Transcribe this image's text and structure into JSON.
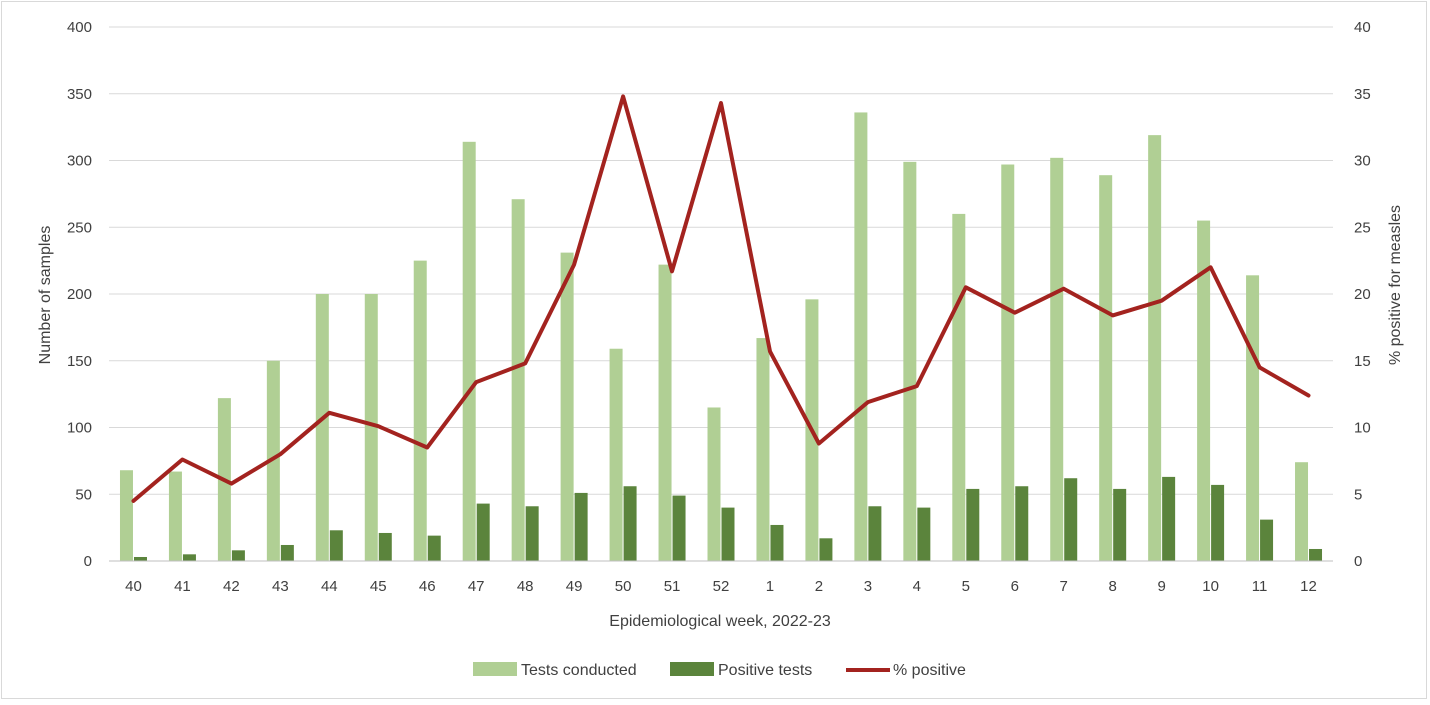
{
  "chart_data": {
    "type": "bar",
    "title": "",
    "xlabel": "Epidemiological week, 2022-23",
    "ylabel": "Number  of samples",
    "y2label": "% positive for measles",
    "ylim": [
      0,
      400
    ],
    "y2lim": [
      0,
      40
    ],
    "yticks": [
      "0",
      "50",
      "100",
      "150",
      "200",
      "250",
      "300",
      "350",
      "400"
    ],
    "y2ticks": [
      "0",
      "5",
      "10",
      "15",
      "20",
      "25",
      "30",
      "35",
      "40"
    ],
    "categories": [
      "40",
      "41",
      "42",
      "43",
      "44",
      "45",
      "46",
      "47",
      "48",
      "49",
      "50",
      "51",
      "52",
      "1",
      "2",
      "3",
      "4",
      "5",
      "6",
      "7",
      "8",
      "9",
      "10",
      "11",
      "12"
    ],
    "series": [
      {
        "name": "Tests conducted",
        "kind": "bar",
        "axis": "left",
        "color": "#b0cf94",
        "values": [
          68,
          67,
          122,
          150,
          200,
          200,
          225,
          314,
          271,
          231,
          159,
          222,
          115,
          167,
          196,
          336,
          299,
          260,
          297,
          302,
          289,
          319,
          255,
          214,
          74
        ]
      },
      {
        "name": "Positive tests",
        "kind": "bar",
        "axis": "left",
        "color": "#5b843c",
        "values": [
          3,
          5,
          8,
          12,
          23,
          21,
          19,
          43,
          41,
          51,
          56,
          49,
          40,
          27,
          17,
          41,
          40,
          54,
          56,
          62,
          54,
          63,
          57,
          31,
          9
        ]
      },
      {
        "name": "% positive",
        "kind": "line",
        "axis": "right",
        "color": "#a3231f",
        "values": [
          4.5,
          7.6,
          5.8,
          8.0,
          11.1,
          10.1,
          8.5,
          13.4,
          14.8,
          22.2,
          34.8,
          21.7,
          34.3,
          15.7,
          8.8,
          11.9,
          13.1,
          20.5,
          18.6,
          20.4,
          18.4,
          19.5,
          22.0,
          14.5,
          12.4
        ]
      }
    ],
    "grid": true,
    "legend_position": "bottom"
  }
}
